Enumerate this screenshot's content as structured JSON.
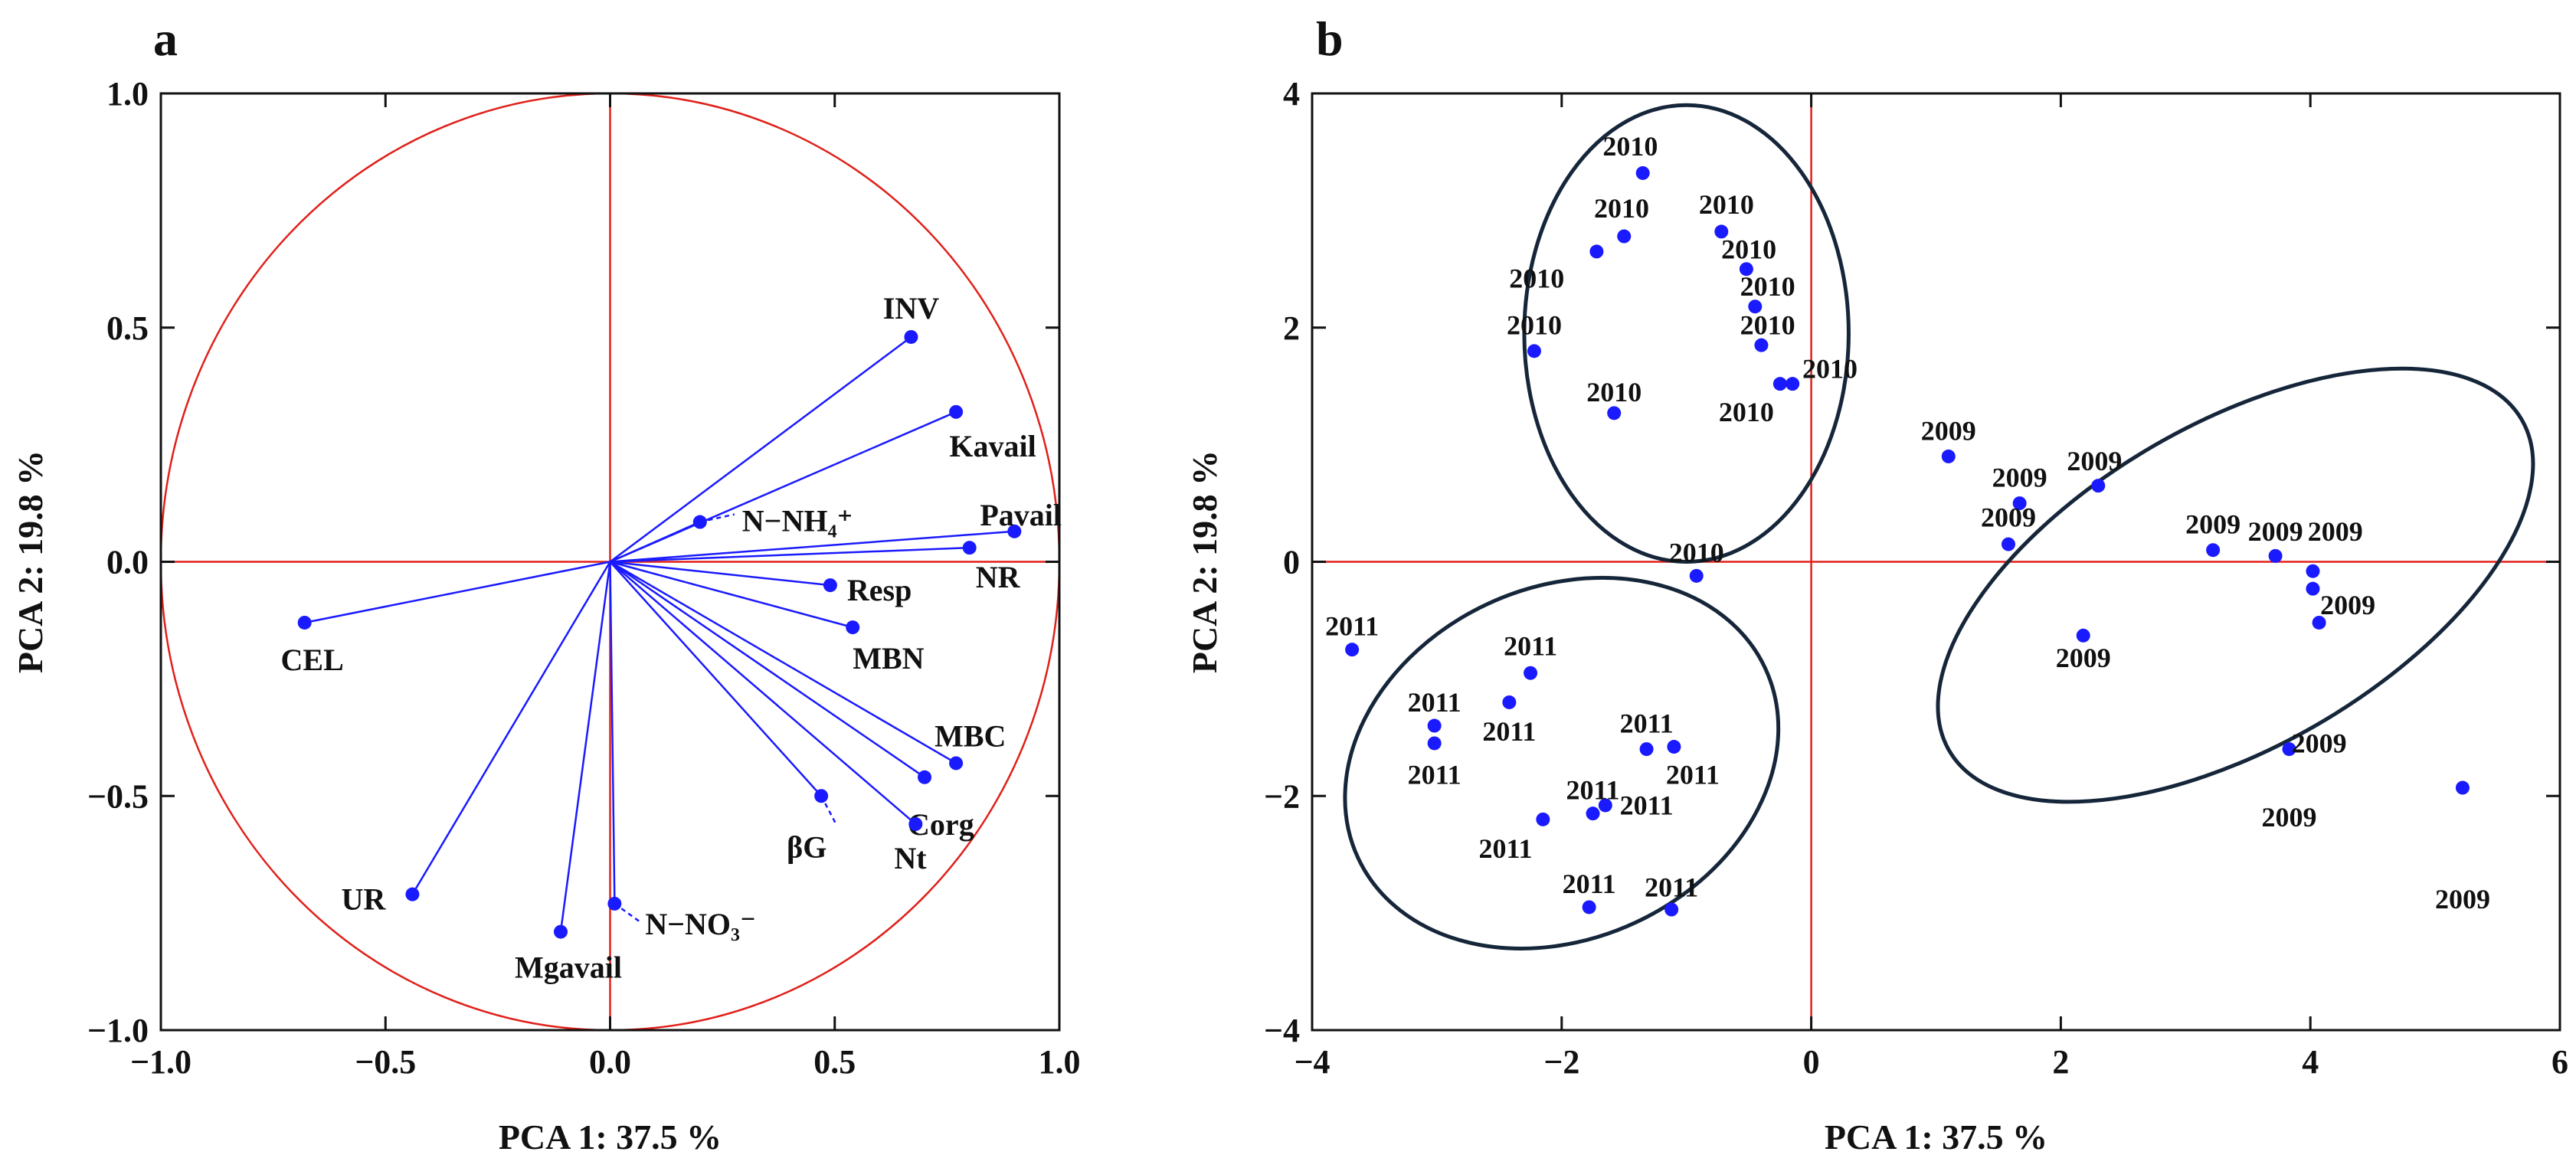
{
  "chart_data": [
    {
      "type": "scatter",
      "panel": "a",
      "xlabel": "PCA 1: 37.5 %",
      "ylabel": "PCA 2: 19.8 %",
      "xlim": [
        -1.0,
        1.0
      ],
      "ylim": [
        -1.0,
        1.0
      ],
      "xticks": [
        "−1.0",
        "−0.5",
        "0.0",
        "0.5",
        "1.0"
      ],
      "yticks": [
        "1.0",
        "0.5",
        "0.0",
        "−0.5",
        "−1.0"
      ],
      "unit_circle": true,
      "vectors": [
        {
          "name": "INV",
          "x": 0.67,
          "y": 0.48
        },
        {
          "name": "Kavail",
          "x": 0.77,
          "y": 0.32
        },
        {
          "name": "Pavail",
          "x": 0.9,
          "y": 0.065
        },
        {
          "name": "NR",
          "x": 0.8,
          "y": 0.03
        },
        {
          "name": "N−NH₄⁺",
          "x": 0.2,
          "y": 0.085
        },
        {
          "name": "Resp",
          "x": 0.49,
          "y": -0.05
        },
        {
          "name": "MBN",
          "x": 0.54,
          "y": -0.14
        },
        {
          "name": "MBC",
          "x": 0.77,
          "y": -0.43
        },
        {
          "name": "Corg",
          "x": 0.7,
          "y": -0.46
        },
        {
          "name": "Nt",
          "x": 0.68,
          "y": -0.56
        },
        {
          "name": "βG",
          "x": 0.47,
          "y": -0.5
        },
        {
          "name": "CEL",
          "x": -0.68,
          "y": -0.13
        },
        {
          "name": "UR",
          "x": -0.44,
          "y": -0.71
        },
        {
          "name": "Mgavail",
          "x": -0.11,
          "y": -0.79
        },
        {
          "name": "N−NO₃⁻",
          "x": 0.01,
          "y": -0.73
        }
      ]
    },
    {
      "type": "scatter",
      "panel": "b",
      "xlabel": "PCA 1: 37.5 %",
      "ylabel": "PCA 2: 19.8 %",
      "xlim": [
        -4,
        6
      ],
      "ylim": [
        -4,
        4
      ],
      "xticks": [
        "−4",
        "−2",
        "0",
        "2",
        "4",
        "6"
      ],
      "yticks": [
        "4",
        "2",
        "0",
        "−2",
        "−4"
      ],
      "series": [
        {
          "name": "2010",
          "points": [
            {
              "x": -1.35,
              "y": 3.32
            },
            {
              "x": -1.5,
              "y": 2.78
            },
            {
              "x": -1.72,
              "y": 2.65
            },
            {
              "x": -0.72,
              "y": 2.82
            },
            {
              "x": -0.52,
              "y": 2.5
            },
            {
              "x": -0.45,
              "y": 2.18
            },
            {
              "x": -0.4,
              "y": 1.85
            },
            {
              "x": -0.25,
              "y": 1.52
            },
            {
              "x": -0.15,
              "y": 1.52
            },
            {
              "x": -2.22,
              "y": 1.8
            },
            {
              "x": -1.58,
              "y": 1.27
            },
            {
              "x": -0.92,
              "y": -0.12
            }
          ],
          "labels": [
            {
              "text": "2010",
              "x": -1.45,
              "y": 3.55
            },
            {
              "text": "2010",
              "x": -1.52,
              "y": 3.02
            },
            {
              "text": "2010",
              "x": -2.2,
              "y": 2.42
            },
            {
              "text": "2010",
              "x": -0.68,
              "y": 3.05
            },
            {
              "text": "2010",
              "x": -0.5,
              "y": 2.67
            },
            {
              "text": "2010",
              "x": -0.35,
              "y": 2.35
            },
            {
              "text": "2010",
              "x": -0.35,
              "y": 2.02
            },
            {
              "text": "2010",
              "x": 0.15,
              "y": 1.65
            },
            {
              "text": "2010",
              "x": -0.52,
              "y": 1.28
            },
            {
              "text": "2010",
              "x": -2.22,
              "y": 2.02
            },
            {
              "text": "2010",
              "x": -1.58,
              "y": 1.45
            },
            {
              "text": "2010",
              "x": -0.92,
              "y": 0.08
            }
          ]
        },
        {
          "name": "2009",
          "points": [
            {
              "x": 1.1,
              "y": 0.9
            },
            {
              "x": 1.67,
              "y": 0.5
            },
            {
              "x": 2.3,
              "y": 0.65
            },
            {
              "x": 1.58,
              "y": 0.15
            },
            {
              "x": 3.22,
              "y": 0.1
            },
            {
              "x": 3.72,
              "y": 0.05
            },
            {
              "x": 4.02,
              "y": -0.08
            },
            {
              "x": 4.02,
              "y": -0.23
            },
            {
              "x": 4.07,
              "y": -0.52
            },
            {
              "x": 2.18,
              "y": -0.63
            },
            {
              "x": 3.83,
              "y": -1.6
            },
            {
              "x": 5.22,
              "y": -1.93
            }
          ],
          "labels": [
            {
              "text": "2009",
              "x": 1.1,
              "y": 1.12
            },
            {
              "text": "2009",
              "x": 1.67,
              "y": 0.72
            },
            {
              "text": "2009",
              "x": 2.27,
              "y": 0.86
            },
            {
              "text": "2009",
              "x": 1.58,
              "y": 0.38
            },
            {
              "text": "2009",
              "x": 3.22,
              "y": 0.32
            },
            {
              "text": "2009",
              "x": 3.72,
              "y": 0.26
            },
            {
              "text": "2009",
              "x": 4.2,
              "y": 0.26
            },
            {
              "text": "2009",
              "x": 4.3,
              "y": -0.37
            },
            {
              "text": "2009",
              "x": 4.07,
              "y": -1.55
            },
            {
              "text": "2009",
              "x": 2.18,
              "y": -0.82
            },
            {
              "text": "2009",
              "x": 3.83,
              "y": -2.18
            },
            {
              "text": "2009",
              "x": 5.22,
              "y": -2.88
            }
          ]
        },
        {
          "name": "2011",
          "points": [
            {
              "x": -3.68,
              "y": -0.75
            },
            {
              "x": -3.02,
              "y": -1.4
            },
            {
              "x": -3.02,
              "y": -1.55
            },
            {
              "x": -2.25,
              "y": -0.95
            },
            {
              "x": -2.42,
              "y": -1.2
            },
            {
              "x": -1.32,
              "y": -1.6
            },
            {
              "x": -1.1,
              "y": -1.58
            },
            {
              "x": -1.75,
              "y": -2.15
            },
            {
              "x": -1.65,
              "y": -2.08
            },
            {
              "x": -2.15,
              "y": -2.2
            },
            {
              "x": -1.78,
              "y": -2.95
            },
            {
              "x": -1.12,
              "y": -2.97
            }
          ],
          "labels": [
            {
              "text": "2011",
              "x": -3.68,
              "y": -0.55
            },
            {
              "text": "2011",
              "x": -3.02,
              "y": -1.2
            },
            {
              "text": "2011",
              "x": -3.02,
              "y": -1.82
            },
            {
              "text": "2011",
              "x": -2.25,
              "y": -0.72
            },
            {
              "text": "2011",
              "x": -2.42,
              "y": -1.45
            },
            {
              "text": "2011",
              "x": -1.32,
              "y": -1.38
            },
            {
              "text": "2011",
              "x": -0.95,
              "y": -1.82
            },
            {
              "text": "2011",
              "x": -1.75,
              "y": -1.95
            },
            {
              "text": "2011",
              "x": -1.32,
              "y": -2.08
            },
            {
              "text": "2011",
              "x": -2.45,
              "y": -2.45
            },
            {
              "text": "2011",
              "x": -1.78,
              "y": -2.75
            },
            {
              "text": "2011",
              "x": -1.12,
              "y": -2.78
            }
          ]
        }
      ],
      "ellipses": [
        {
          "group": "2010",
          "cx": -1.0,
          "cy": 1.95,
          "rx": 1.3,
          "ry": 1.95,
          "angle_deg": 0
        },
        {
          "group": "2011",
          "cx": -2.0,
          "cy": -1.72,
          "rx": 1.8,
          "ry": 1.5,
          "angle_deg": -25
        },
        {
          "group": "2009",
          "cx": 3.4,
          "cy": -0.2,
          "rx": 2.65,
          "ry": 1.38,
          "angle_deg": -30
        }
      ]
    }
  ],
  "panels": {
    "a": {
      "letter": "a"
    },
    "b": {
      "letter": "b"
    }
  }
}
